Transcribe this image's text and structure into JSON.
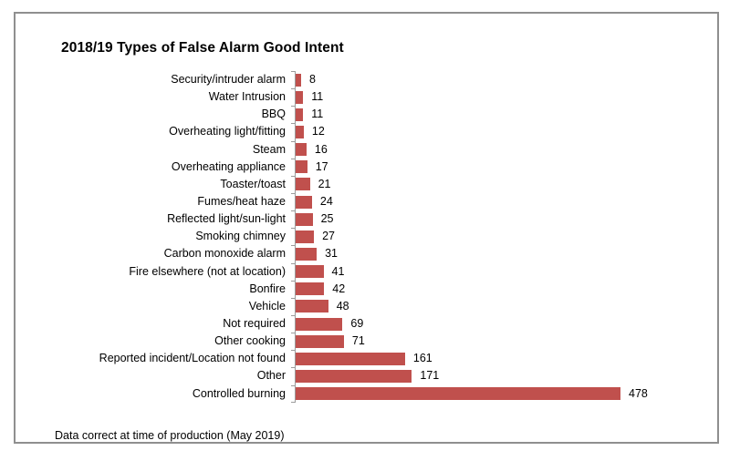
{
  "frame": {
    "border_color": "#8f8f8f",
    "background": "#ffffff"
  },
  "chart_data": {
    "type": "bar",
    "orientation": "horizontal",
    "title": "2018/19 Types of False Alarm Good Intent",
    "categories": [
      "Security/intruder alarm",
      "Water Intrusion",
      "BBQ",
      "Overheating light/fitting",
      "Steam",
      "Overheating appliance",
      "Toaster/toast",
      "Fumes/heat haze",
      "Reflected light/sun-light",
      "Smoking chimney",
      "Carbon monoxide alarm",
      "Fire elsewhere (not at location)",
      "Bonfire",
      "Vehicle",
      "Not required",
      "Other cooking",
      "Reported incident/Location not found",
      "Other",
      "Controlled burning"
    ],
    "values": [
      8,
      11,
      11,
      12,
      16,
      17,
      21,
      24,
      25,
      27,
      31,
      41,
      42,
      48,
      69,
      71,
      161,
      171,
      478
    ],
    "value_labels_shown": true,
    "xlabel": "",
    "ylabel": "",
    "xlim": [
      0,
      500
    ],
    "grid": false,
    "legend": false,
    "bar_color": "#c0504d",
    "axis_color": "#9c9c9c"
  },
  "footer": {
    "note": "Data correct at time of production (May 2019)"
  }
}
